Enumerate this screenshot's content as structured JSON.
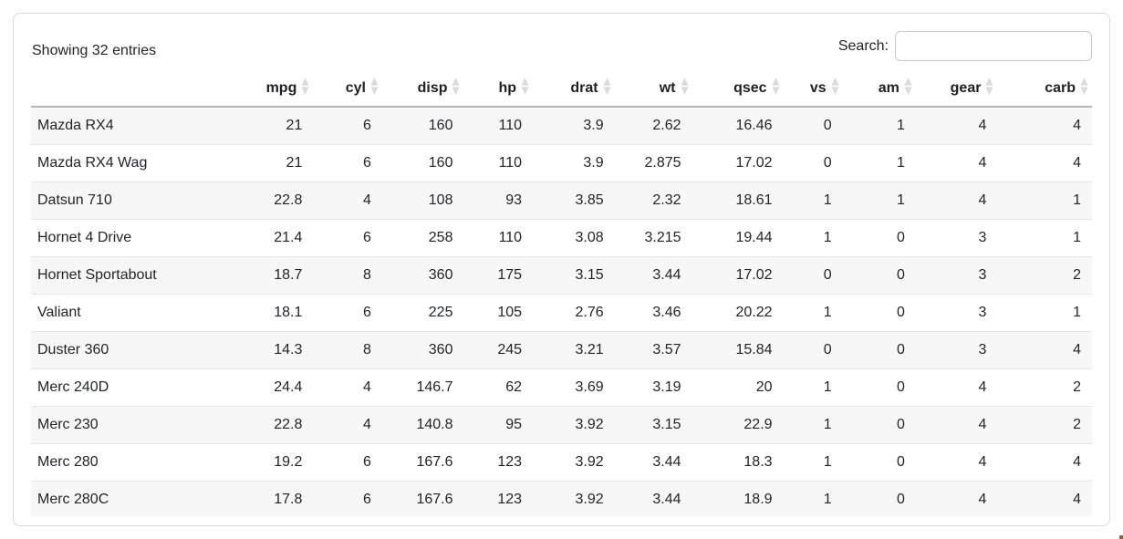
{
  "info": {
    "showing": "Showing 32 entries"
  },
  "search": {
    "label": "Search:",
    "value": "",
    "placeholder": ""
  },
  "icons": {
    "sort": "sort-arrows-icon"
  },
  "colors": {
    "stripe": "#f7f7f7",
    "row_border": "#e4e6e8",
    "header_border": "#b2b6ba",
    "card_border": "#d8dadc",
    "sort_icon": "#dbdbdb",
    "text": "#212529"
  },
  "table": {
    "columns": [
      {
        "key": "name",
        "label": "",
        "sortable": false
      },
      {
        "key": "mpg",
        "label": "mpg",
        "sortable": true
      },
      {
        "key": "cyl",
        "label": "cyl",
        "sortable": true
      },
      {
        "key": "disp",
        "label": "disp",
        "sortable": true
      },
      {
        "key": "hp",
        "label": "hp",
        "sortable": true
      },
      {
        "key": "drat",
        "label": "drat",
        "sortable": true
      },
      {
        "key": "wt",
        "label": "wt",
        "sortable": true
      },
      {
        "key": "qsec",
        "label": "qsec",
        "sortable": true
      },
      {
        "key": "vs",
        "label": "vs",
        "sortable": true
      },
      {
        "key": "am",
        "label": "am",
        "sortable": true
      },
      {
        "key": "gear",
        "label": "gear",
        "sortable": true
      },
      {
        "key": "carb",
        "label": "carb",
        "sortable": true
      }
    ],
    "rows": [
      [
        "Mazda RX4",
        "21",
        "6",
        "160",
        "110",
        "3.9",
        "2.62",
        "16.46",
        "0",
        "1",
        "4",
        "4"
      ],
      [
        "Mazda RX4 Wag",
        "21",
        "6",
        "160",
        "110",
        "3.9",
        "2.875",
        "17.02",
        "0",
        "1",
        "4",
        "4"
      ],
      [
        "Datsun 710",
        "22.8",
        "4",
        "108",
        "93",
        "3.85",
        "2.32",
        "18.61",
        "1",
        "1",
        "4",
        "1"
      ],
      [
        "Hornet 4 Drive",
        "21.4",
        "6",
        "258",
        "110",
        "3.08",
        "3.215",
        "19.44",
        "1",
        "0",
        "3",
        "1"
      ],
      [
        "Hornet Sportabout",
        "18.7",
        "8",
        "360",
        "175",
        "3.15",
        "3.44",
        "17.02",
        "0",
        "0",
        "3",
        "2"
      ],
      [
        "Valiant",
        "18.1",
        "6",
        "225",
        "105",
        "2.76",
        "3.46",
        "20.22",
        "1",
        "0",
        "3",
        "1"
      ],
      [
        "Duster 360",
        "14.3",
        "8",
        "360",
        "245",
        "3.21",
        "3.57",
        "15.84",
        "0",
        "0",
        "3",
        "4"
      ],
      [
        "Merc 240D",
        "24.4",
        "4",
        "146.7",
        "62",
        "3.69",
        "3.19",
        "20",
        "1",
        "0",
        "4",
        "2"
      ],
      [
        "Merc 230",
        "22.8",
        "4",
        "140.8",
        "95",
        "3.92",
        "3.15",
        "22.9",
        "1",
        "0",
        "4",
        "2"
      ],
      [
        "Merc 280",
        "19.2",
        "6",
        "167.6",
        "123",
        "3.92",
        "3.44",
        "18.3",
        "1",
        "0",
        "4",
        "4"
      ],
      [
        "Merc 280C",
        "17.8",
        "6",
        "167.6",
        "123",
        "3.92",
        "3.44",
        "18.9",
        "1",
        "0",
        "4",
        "4"
      ]
    ]
  }
}
